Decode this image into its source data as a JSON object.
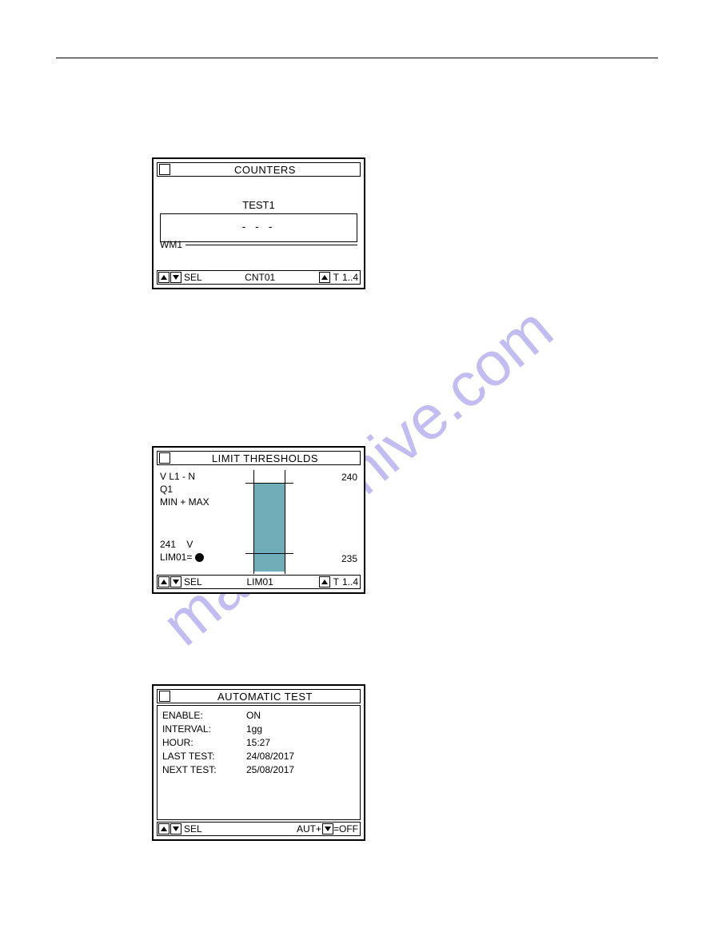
{
  "watermark": "manualshive.com",
  "panel1": {
    "title": "COUNTERS",
    "test_label": "TEST1",
    "value_display": "-  -  -",
    "wm_label": "WM1",
    "footer": {
      "sel": "SEL",
      "center": "CNT01",
      "t": "T",
      "range": "1..4"
    }
  },
  "panel2": {
    "title": "LIMIT THRESHOLDS",
    "line1": "V L1 - N",
    "line2": "Q1",
    "line3": "MIN + MAX",
    "value": "241",
    "unit": "V",
    "lim_label": "LIM01=",
    "upper": "240",
    "lower": "235",
    "bar": {
      "fill_color": "#6fadb8",
      "fill_top_pct": 12,
      "fill_bottom_pct": 98,
      "tick_top_pct": 12,
      "tick_bottom_pct": 80
    },
    "footer": {
      "sel": "SEL",
      "center": "LIM01",
      "t": "T",
      "range": "1..4"
    }
  },
  "panel3": {
    "title": "AUTOMATIC TEST",
    "rows": [
      {
        "label": "ENABLE:",
        "value": "ON"
      },
      {
        "label": "INTERVAL:",
        "value": "1gg"
      },
      {
        "label": "HOUR:",
        "value": "15:27"
      },
      {
        "label": "LAST TEST:",
        "value": "24/08/2017"
      },
      {
        "label": "NEXT TEST:",
        "value": "25/08/2017"
      }
    ],
    "footer": {
      "sel": "SEL",
      "right_text": "AUT+",
      "right_suffix": "=OFF"
    }
  }
}
